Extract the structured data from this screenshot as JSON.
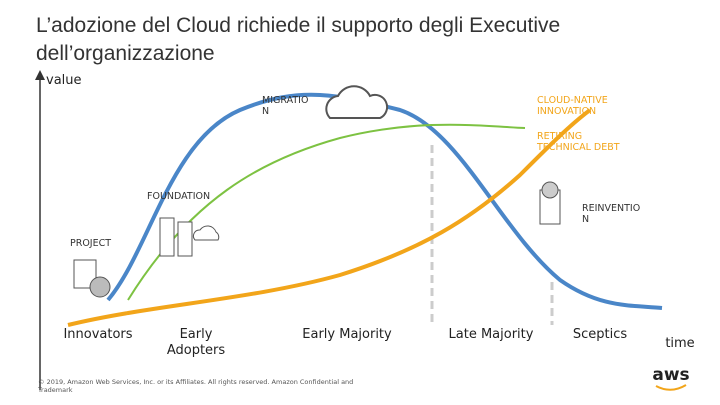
{
  "header": {
    "title": [
      "L’adozione del Cloud richiede il supporto degli Executive",
      "dell’organizzazione"
    ]
  },
  "axes": {
    "y_label": "value",
    "x_label": "time"
  },
  "curve_labels": {
    "migration": [
      "MIGRATIO",
      "N"
    ],
    "cloud_native": [
      "CLOUD-NATIVE",
      "INNOVATION"
    ],
    "retiring": [
      "RETIRING",
      "TECHNICAL DEBT"
    ],
    "foundation": [
      "FOUNDATION"
    ],
    "reinvention": [
      "REINVENTIO",
      "N"
    ],
    "project": [
      "PROJECT"
    ]
  },
  "phases": [
    [
      "Innovators"
    ],
    [
      "Early",
      "Adopters"
    ],
    [
      "Early Majority"
    ],
    [
      "Late Majority"
    ],
    [
      "Sceptics"
    ]
  ],
  "footer": [
    "© 2019, Amazon Web Services, Inc. or its Affiliates. All rights reserved. Amazon Confidential and",
    "Trademark"
  ],
  "logo": "aws"
}
